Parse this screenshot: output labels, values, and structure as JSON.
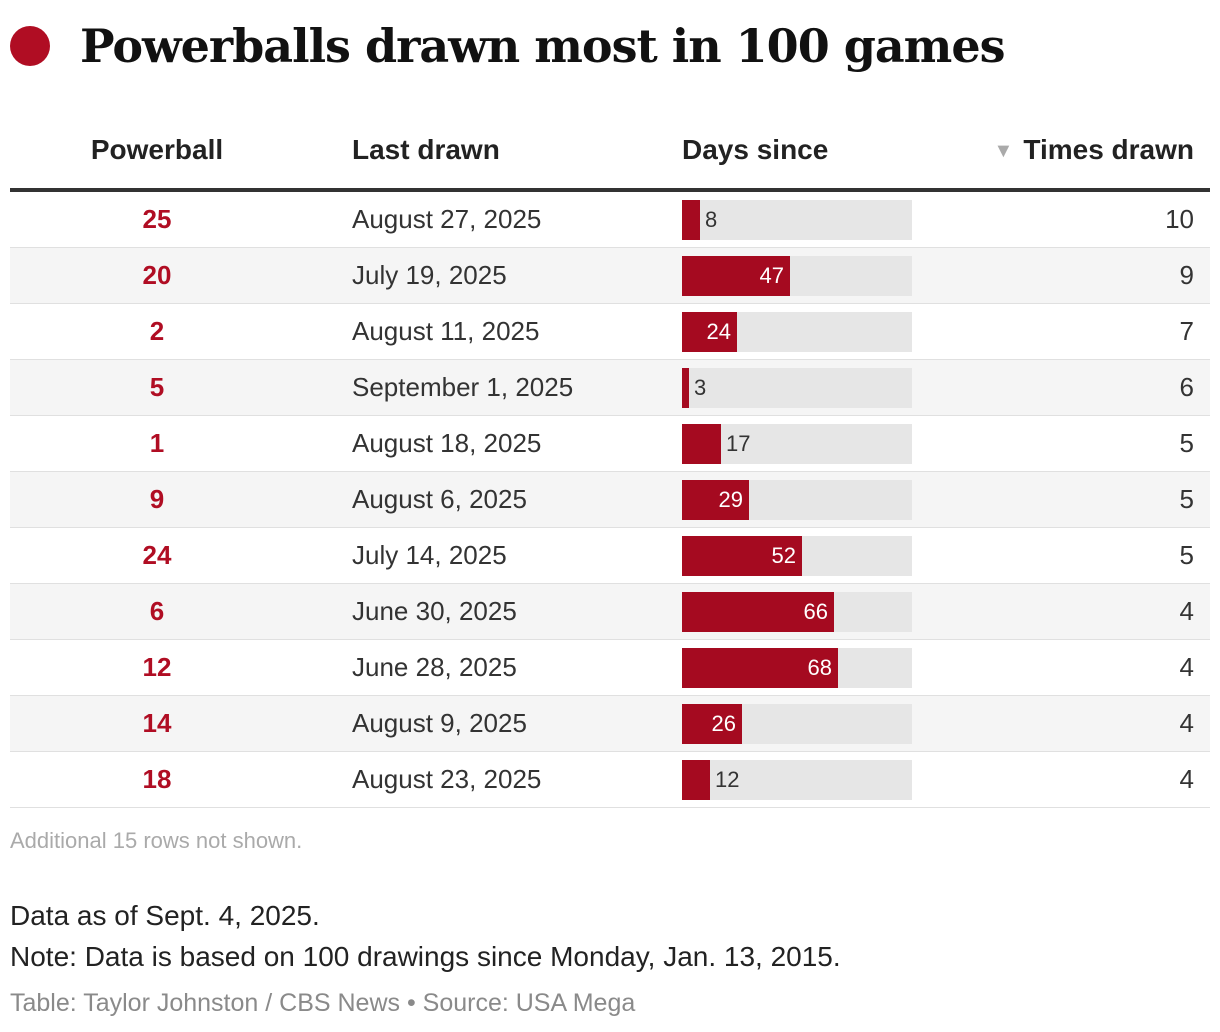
{
  "title": "Powerballs drawn most in 100 games",
  "colors": {
    "accent": "#b00d23",
    "bar": "#a50a20",
    "bar_track": "#e6e6e6"
  },
  "chart_data": {
    "type": "table",
    "columns": [
      "Powerball",
      "Last drawn",
      "Days since",
      "Times drawn"
    ],
    "sort_indicator": "▼",
    "sorted_by": "Times drawn",
    "days_max": 100,
    "rows": [
      {
        "powerball": "25",
        "last_drawn": "August 27, 2025",
        "days_since": 8,
        "times_drawn": 10
      },
      {
        "powerball": "20",
        "last_drawn": "July 19, 2025",
        "days_since": 47,
        "times_drawn": 9
      },
      {
        "powerball": "2",
        "last_drawn": "August 11, 2025",
        "days_since": 24,
        "times_drawn": 7
      },
      {
        "powerball": "5",
        "last_drawn": "September 1, 2025",
        "days_since": 3,
        "times_drawn": 6
      },
      {
        "powerball": "1",
        "last_drawn": "August 18, 2025",
        "days_since": 17,
        "times_drawn": 5
      },
      {
        "powerball": "9",
        "last_drawn": "August 6, 2025",
        "days_since": 29,
        "times_drawn": 5
      },
      {
        "powerball": "24",
        "last_drawn": "July 14, 2025",
        "days_since": 52,
        "times_drawn": 5
      },
      {
        "powerball": "6",
        "last_drawn": "June 30, 2025",
        "days_since": 66,
        "times_drawn": 4
      },
      {
        "powerball": "12",
        "last_drawn": "June 28, 2025",
        "days_since": 68,
        "times_drawn": 4
      },
      {
        "powerball": "14",
        "last_drawn": "August 9, 2025",
        "days_since": 26,
        "times_drawn": 4
      },
      {
        "powerball": "18",
        "last_drawn": "August 23, 2025",
        "days_since": 12,
        "times_drawn": 4
      }
    ]
  },
  "footer": {
    "more_rows": "Additional 15 rows not shown.",
    "data_as_of": "Data as of Sept. 4, 2025.",
    "note": "Note: Data is based on 100 drawings since Monday, Jan. 13, 2015.",
    "credit": "Table: Taylor Johnston / CBS News • Source: USA Mega"
  }
}
